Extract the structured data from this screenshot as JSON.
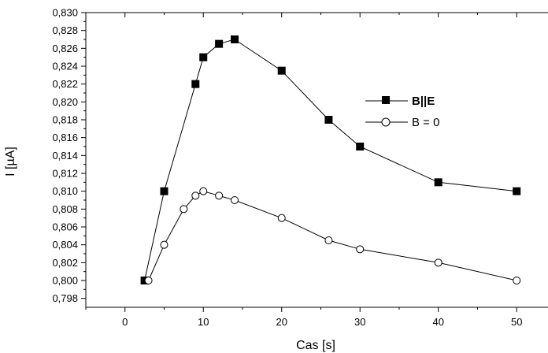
{
  "chart_data": {
    "type": "line",
    "xlabel": "Cas [s]",
    "ylabel": "I [µA]",
    "xlim": [
      -5,
      54
    ],
    "ylim": [
      0.797,
      0.83
    ],
    "x_ticks": [
      0,
      10,
      20,
      30,
      40,
      50
    ],
    "y_ticks": [
      0.798,
      0.8,
      0.802,
      0.804,
      0.806,
      0.808,
      0.81,
      0.812,
      0.814,
      0.816,
      0.818,
      0.82,
      0.822,
      0.824,
      0.826,
      0.828,
      0.83
    ],
    "x_tick_labels": [
      "0",
      "10",
      "20",
      "30",
      "40",
      "50"
    ],
    "y_tick_labels": [
      "0,798",
      "0,800",
      "0,802",
      "0,804",
      "0,806",
      "0,808",
      "0,810",
      "0,812",
      "0,814",
      "0,816",
      "0,818",
      "0,820",
      "0,822",
      "0,824",
      "0,826",
      "0,828",
      "0,830"
    ],
    "grid": false,
    "legend_position": "right",
    "series": [
      {
        "name": "B||E",
        "marker": "filled-square",
        "color": "#000000",
        "x": [
          2.5,
          5,
          9,
          10,
          12,
          14,
          20,
          26,
          30,
          40,
          50
        ],
        "y": [
          0.8,
          0.81,
          0.822,
          0.825,
          0.8265,
          0.827,
          0.8235,
          0.818,
          0.815,
          0.811,
          0.81
        ]
      },
      {
        "name": "B = 0",
        "marker": "open-circle",
        "color": "#000000",
        "x": [
          3,
          5,
          7.5,
          9,
          10,
          12,
          14,
          20,
          26,
          30,
          40,
          50
        ],
        "y": [
          0.8,
          0.804,
          0.808,
          0.8095,
          0.81,
          0.8095,
          0.809,
          0.807,
          0.8045,
          0.8035,
          0.802,
          0.8
        ]
      }
    ]
  }
}
